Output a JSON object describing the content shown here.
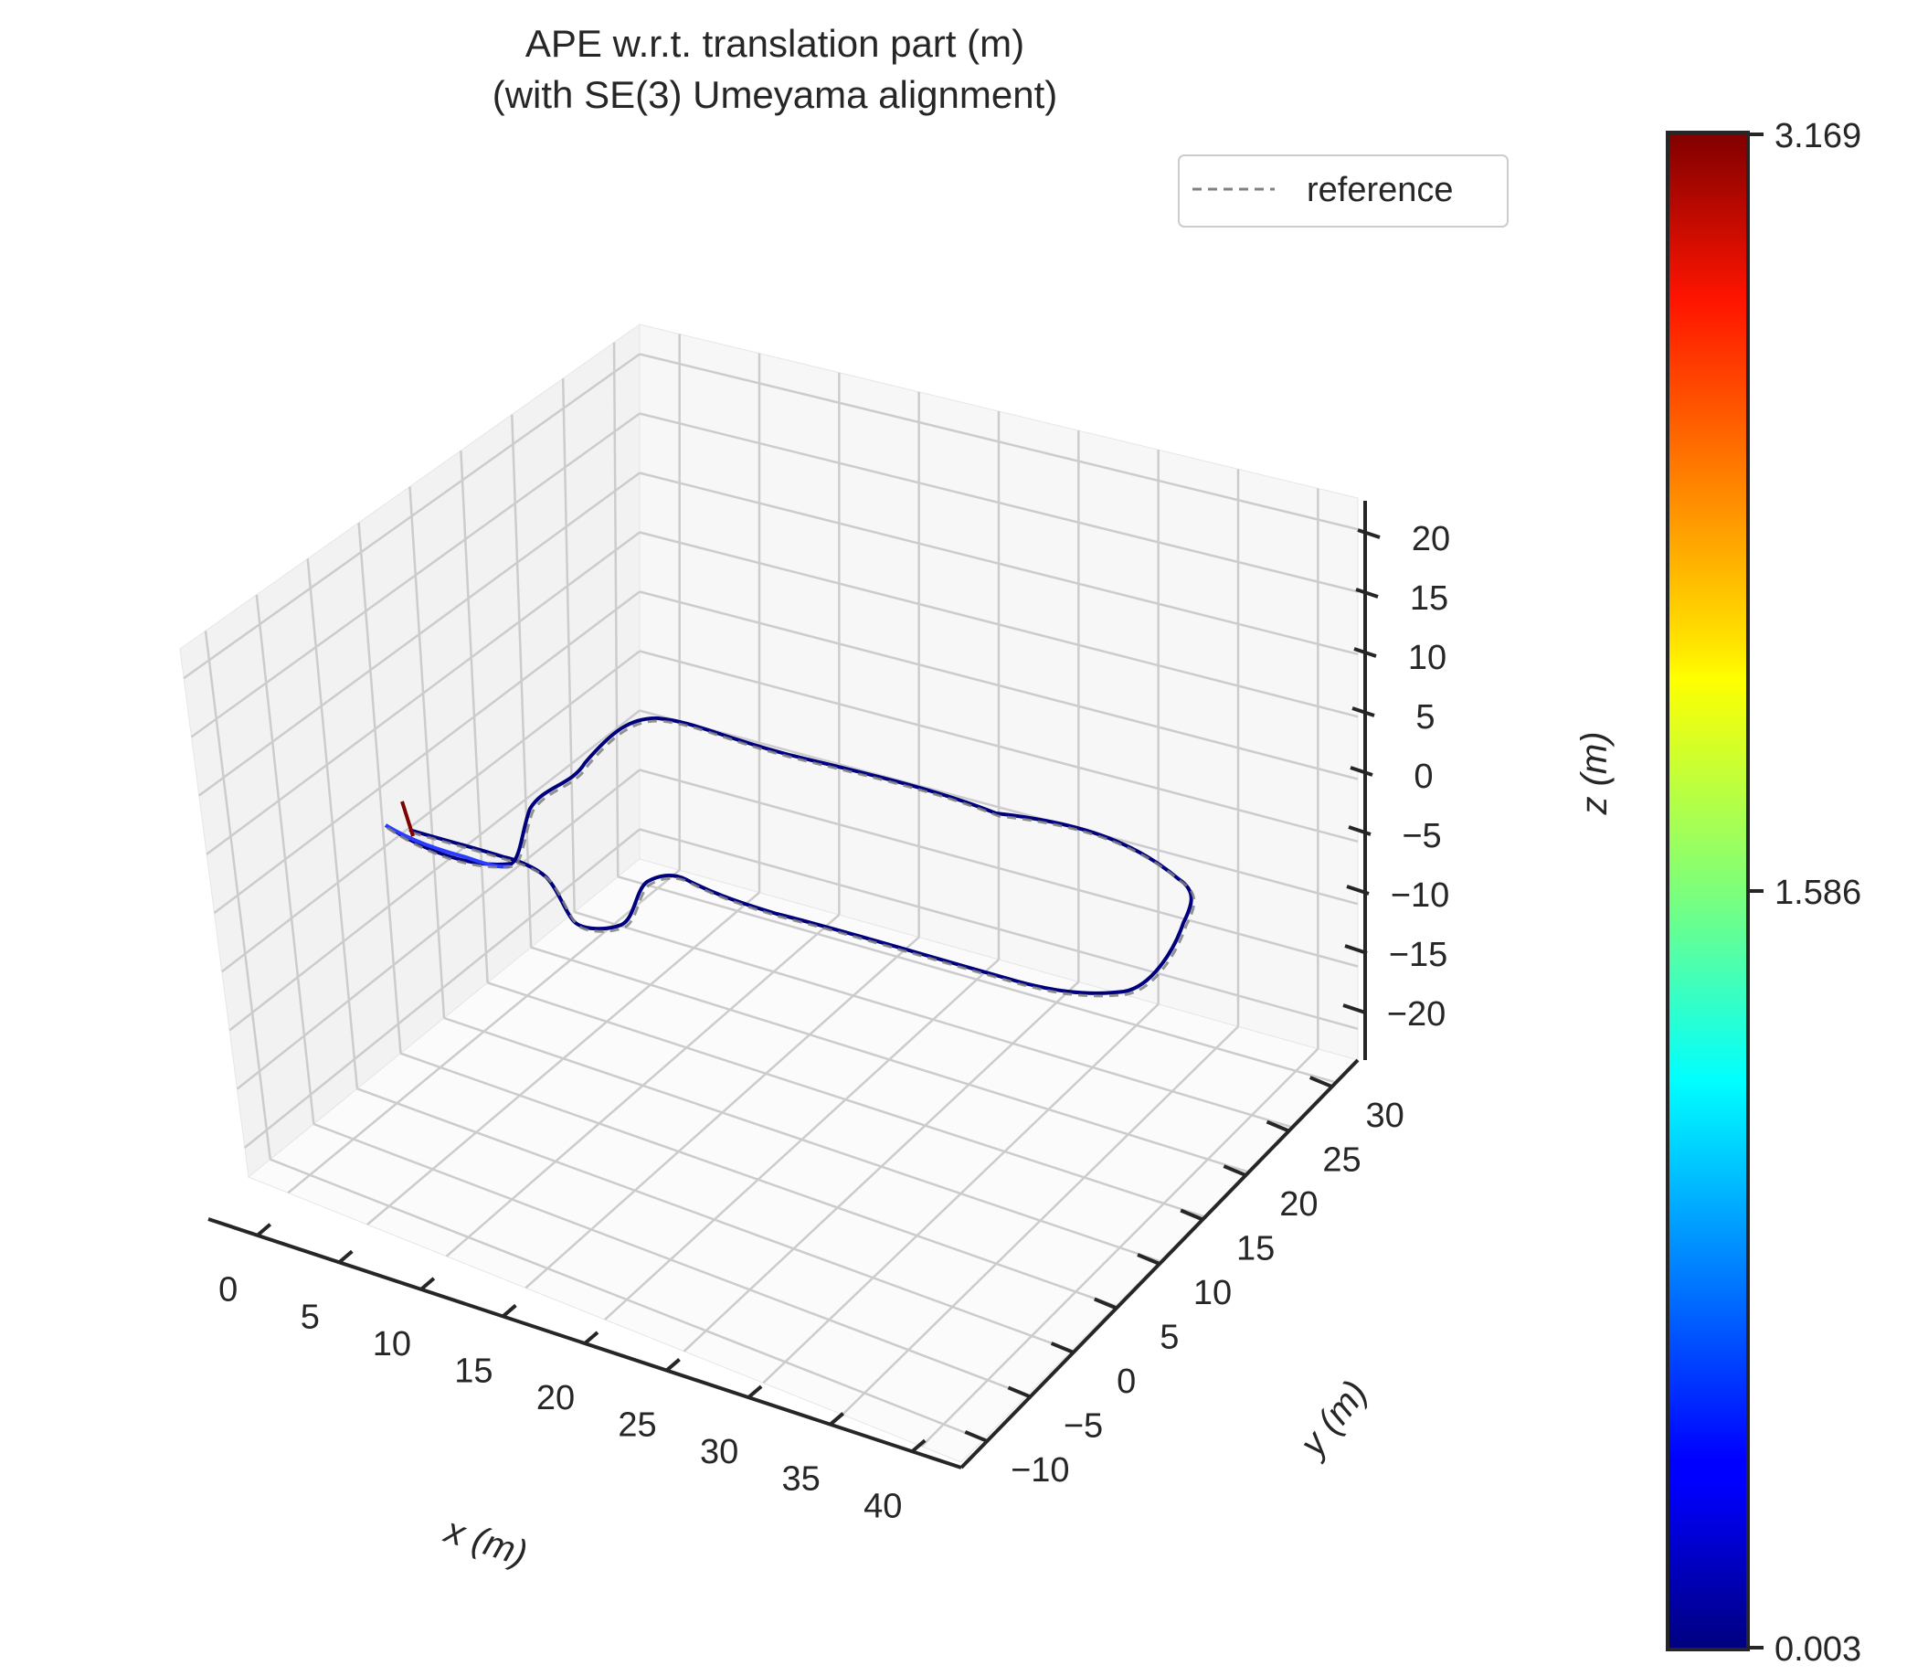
{
  "chart_data": {
    "type": "line",
    "title_line1": "APE w.r.t. translation part (m)",
    "title_line2": "(with SE(3) Umeyama alignment)",
    "xlabel": "x (m)",
    "ylabel": "y (m)",
    "zlabel": "z (m)",
    "x_ticks": [
      "0",
      "5",
      "10",
      "15",
      "20",
      "25",
      "30",
      "35",
      "40"
    ],
    "y_ticks": [
      "−10",
      "−5",
      "0",
      "5",
      "10",
      "15",
      "20",
      "25",
      "30"
    ],
    "z_ticks": [
      "20",
      "15",
      "10",
      "5",
      "0",
      "−5",
      "−10",
      "−15",
      "−20"
    ],
    "xlim": [
      -3,
      43
    ],
    "ylim": [
      -12,
      33
    ],
    "zlim": [
      -23,
      23
    ],
    "grid": true,
    "legend": {
      "position": "top-right",
      "entries": [
        "reference"
      ]
    },
    "colorbar": {
      "label": "z (m)",
      "ticks": [
        "3.169",
        "1.586",
        "0.003"
      ],
      "range": [
        0.003,
        3.169
      ],
      "colormap": "jet"
    },
    "colors": {
      "reference": "#808080",
      "trajectory_low": "#00007f",
      "trajectory_high": "#7f0000"
    }
  }
}
